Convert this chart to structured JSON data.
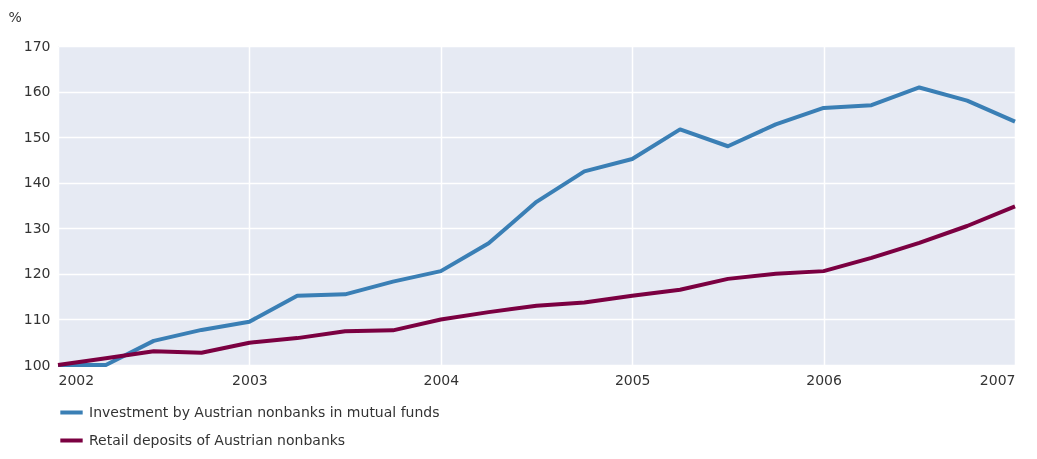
{
  "chart_data": {
    "type": "line",
    "ylabel": "%",
    "x": [
      2002,
      2002.25,
      2002.5,
      2002.75,
      2003,
      2003.25,
      2003.5,
      2003.75,
      2004,
      2004.25,
      2004.5,
      2004.75,
      2005,
      2005.25,
      2005.5,
      2005.75,
      2006,
      2006.25,
      2006.5,
      2006.75,
      2007
    ],
    "series": [
      {
        "name": "Investment by Austrian nonbanks in mutual funds",
        "color": "#3a7fb5",
        "values": [
          100,
          100,
          105.3,
          107.7,
          109.5,
          115.2,
          115.5,
          118.3,
          120.6,
          126.7,
          135.8,
          142.5,
          145.2,
          151.7,
          148.0,
          152.8,
          156.4,
          157.0,
          160.9,
          158.0,
          153.4
        ]
      },
      {
        "name": "Retail deposits of Austrian nonbanks",
        "color": "#7b0041",
        "values": [
          100,
          101.5,
          103.0,
          102.7,
          104.9,
          105.9,
          107.4,
          107.6,
          110.0,
          111.6,
          113.0,
          113.7,
          115.2,
          116.5,
          118.9,
          120.0,
          120.6,
          123.5,
          126.8,
          130.5,
          134.8
        ]
      }
    ],
    "xlim": [
      2002,
      2007
    ],
    "xticks": [
      2002,
      2003,
      2004,
      2005,
      2006,
      2007
    ],
    "ylim": [
      100,
      170
    ],
    "yticks": [
      100,
      110,
      120,
      130,
      140,
      150,
      160,
      170
    ],
    "grid": true,
    "legend": "bottom left",
    "marker": "none",
    "line_style": "solid"
  }
}
